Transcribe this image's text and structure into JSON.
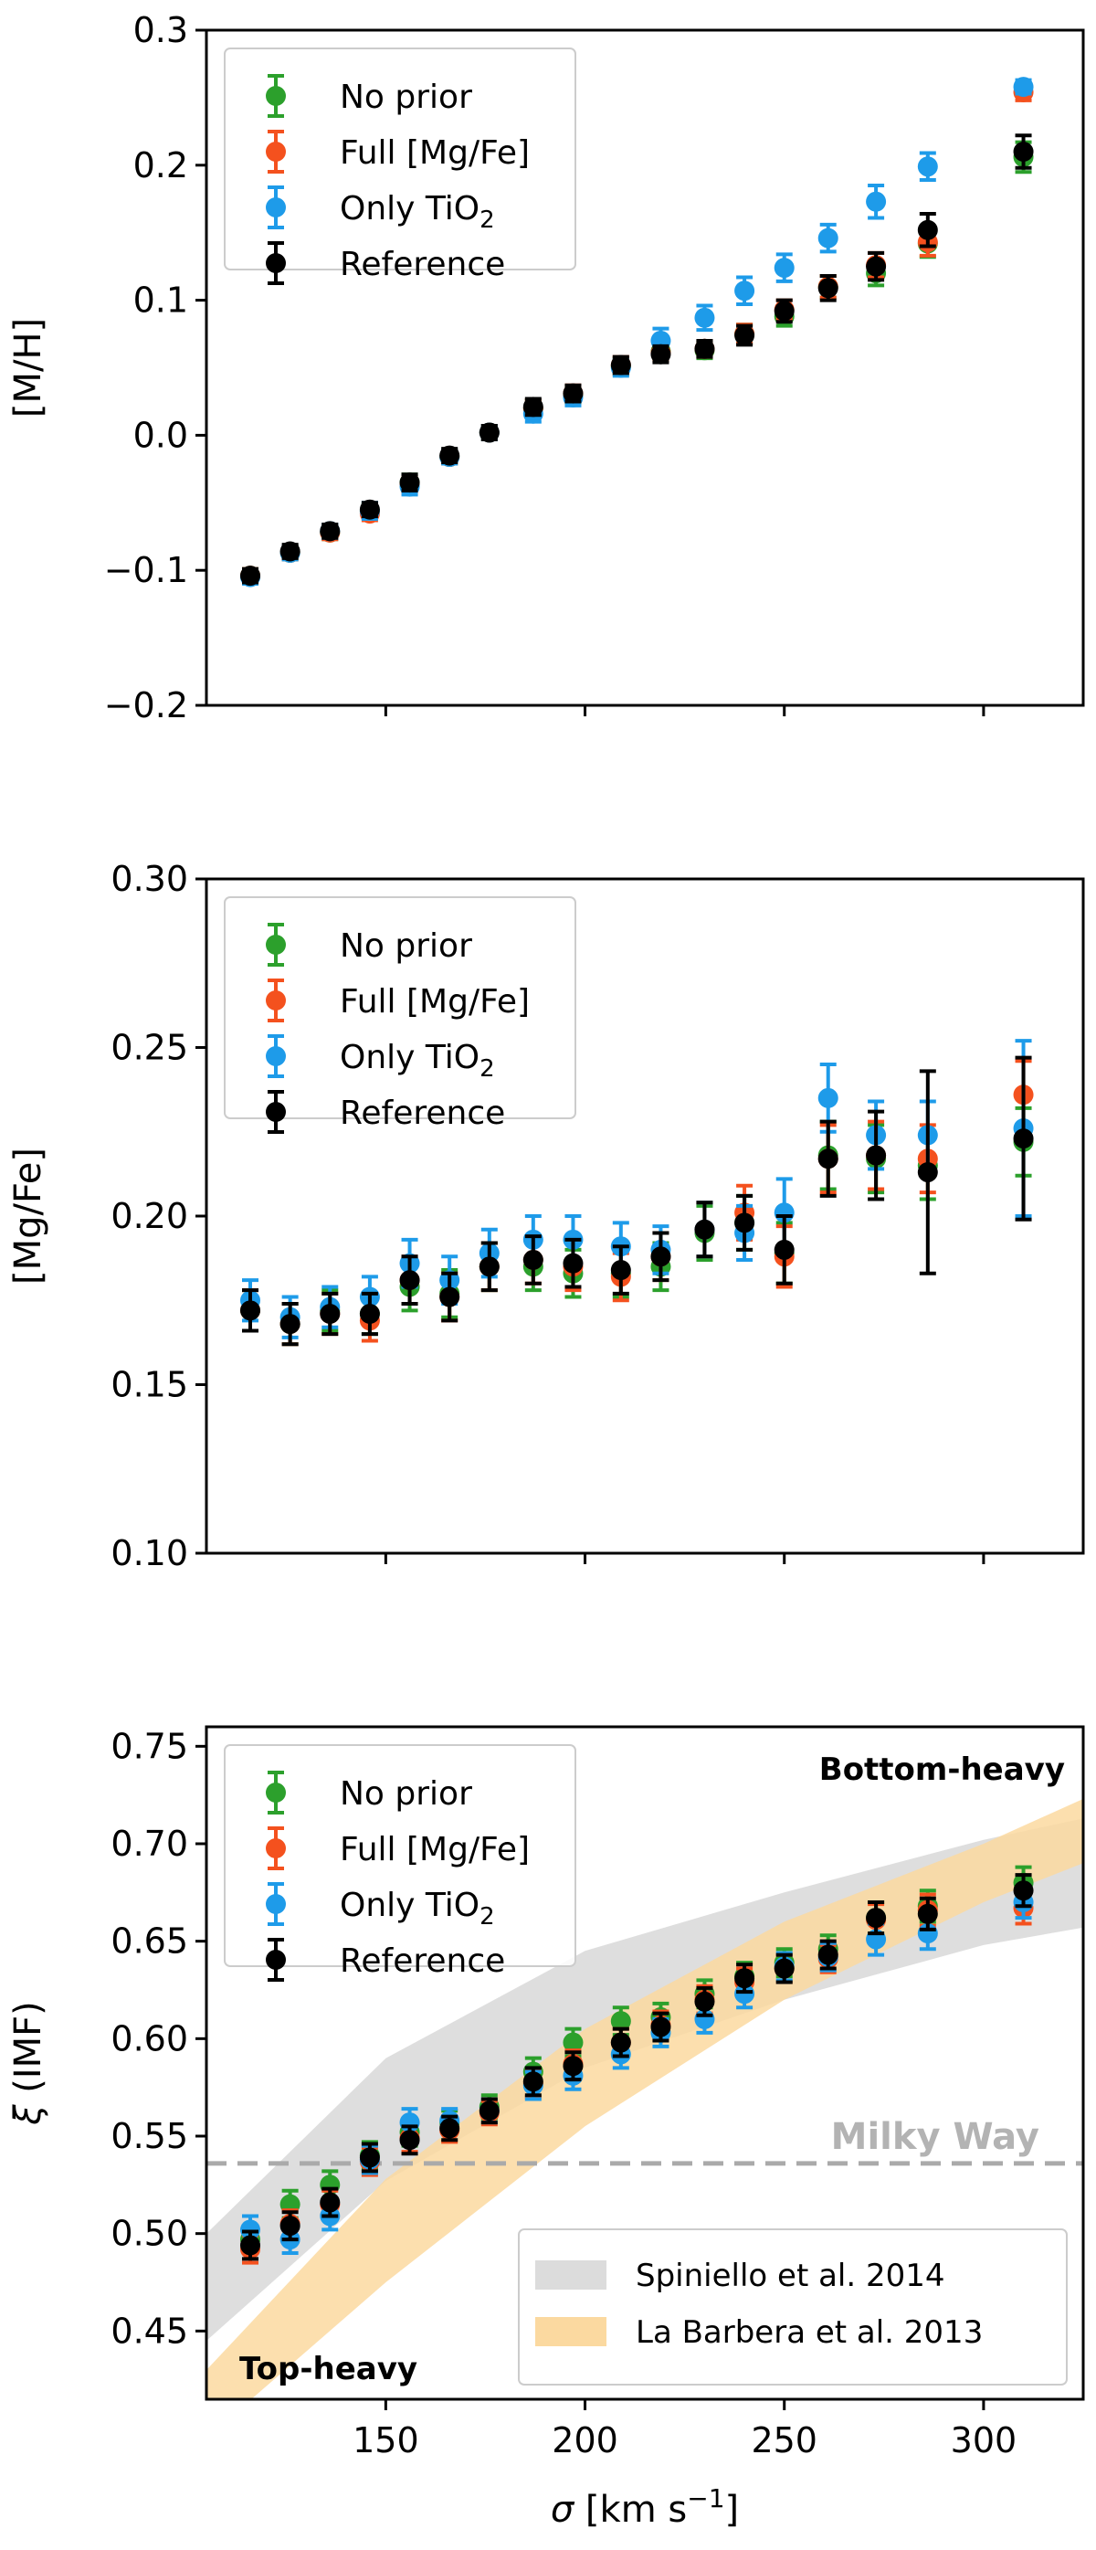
{
  "colors": {
    "no_prior": "#2ca02c",
    "full_mgfe": "#f4511e",
    "only_tio2": "#1e9be9",
    "reference": "#000000",
    "spiniello_band": "#dcdcdc",
    "labarbera_band": "#fbd9a0",
    "milky_way_line": "#aaaaaa"
  },
  "legend_entries": [
    {
      "key": "no_prior",
      "text": "No prior",
      "sub": ""
    },
    {
      "key": "full_mgfe",
      "text": "Full [Mg/Fe]",
      "sub": ""
    },
    {
      "key": "only_tio2",
      "text": "Only TiO",
      "sub": "2"
    },
    {
      "key": "reference",
      "text": "Reference",
      "sub": ""
    }
  ],
  "shared_x": {
    "label_sigma": "σ",
    "label_rest": " [km s",
    "label_exp": "−1",
    "label_close": "]",
    "xlim": [
      105,
      325
    ],
    "ticks": [
      150,
      200,
      250,
      300
    ],
    "tick_labels": [
      "150",
      "200",
      "250",
      "300"
    ]
  },
  "chart_data": [
    {
      "type": "scatter",
      "id": "mh",
      "ylabel": "[M/H]",
      "ylim": [
        -0.2,
        0.3
      ],
      "yticks": [
        -0.2,
        -0.1,
        0.0,
        0.1,
        0.2,
        0.3
      ],
      "ytick_labels": [
        "−0.2",
        "−0.1",
        "0.0",
        "0.1",
        "0.2",
        "0.3"
      ],
      "x": [
        116,
        126,
        136,
        146,
        156,
        166,
        176,
        187,
        197,
        209,
        219,
        230,
        240,
        250,
        261,
        273,
        286,
        310
      ],
      "series": [
        {
          "key": "no_prior",
          "values": [
            -0.104,
            -0.087,
            -0.072,
            -0.056,
            -0.035,
            -0.016,
            0.002,
            0.02,
            0.03,
            0.051,
            0.062,
            0.063,
            0.075,
            0.088,
            0.11,
            0.12,
            0.142,
            0.206
          ],
          "err": [
            0.005,
            0.005,
            0.005,
            0.005,
            0.006,
            0.005,
            0.005,
            0.006,
            0.006,
            0.006,
            0.006,
            0.006,
            0.007,
            0.007,
            0.008,
            0.009,
            0.01,
            0.011
          ]
        },
        {
          "key": "full_mgfe",
          "values": [
            -0.104,
            -0.087,
            -0.072,
            -0.058,
            -0.037,
            -0.016,
            0.002,
            0.02,
            0.031,
            0.052,
            0.061,
            0.064,
            0.075,
            0.093,
            0.11,
            0.126,
            0.143,
            0.254
          ],
          "err": [
            0.005,
            0.005,
            0.005,
            0.005,
            0.006,
            0.005,
            0.005,
            0.006,
            0.006,
            0.006,
            0.006,
            0.006,
            0.007,
            0.007,
            0.008,
            0.009,
            0.01,
            0.006
          ]
        },
        {
          "key": "only_tio2",
          "values": [
            -0.105,
            -0.087,
            -0.071,
            -0.056,
            -0.038,
            -0.016,
            0.002,
            0.016,
            0.028,
            0.05,
            0.07,
            0.087,
            0.107,
            0.124,
            0.146,
            0.173,
            0.199,
            0.258
          ],
          "err": [
            0.005,
            0.005,
            0.005,
            0.006,
            0.006,
            0.005,
            0.005,
            0.006,
            0.006,
            0.006,
            0.009,
            0.009,
            0.01,
            0.01,
            0.01,
            0.012,
            0.01,
            0.005
          ]
        },
        {
          "key": "reference",
          "values": [
            -0.104,
            -0.086,
            -0.071,
            -0.055,
            -0.035,
            -0.015,
            0.002,
            0.021,
            0.031,
            0.052,
            0.06,
            0.064,
            0.074,
            0.092,
            0.109,
            0.125,
            0.152,
            0.21
          ],
          "err": [
            0.005,
            0.005,
            0.005,
            0.005,
            0.006,
            0.005,
            0.005,
            0.006,
            0.006,
            0.006,
            0.006,
            0.006,
            0.007,
            0.008,
            0.009,
            0.01,
            0.012,
            0.012
          ]
        }
      ]
    },
    {
      "type": "scatter",
      "id": "mgfe",
      "ylabel": "[Mg/Fe]",
      "ylim": [
        0.1,
        0.3
      ],
      "yticks": [
        0.1,
        0.15,
        0.2,
        0.25,
        0.3
      ],
      "ytick_labels": [
        "0.10",
        "0.15",
        "0.20",
        "0.25",
        "0.30"
      ],
      "x": [
        116,
        126,
        136,
        146,
        156,
        166,
        176,
        187,
        197,
        209,
        219,
        230,
        240,
        250,
        261,
        273,
        286,
        310
      ],
      "series": [
        {
          "key": "no_prior",
          "values": [
            0.172,
            0.168,
            0.172,
            0.171,
            0.179,
            0.177,
            0.185,
            0.185,
            0.183,
            0.183,
            0.185,
            0.195,
            0.198,
            0.189,
            0.218,
            0.217,
            0.215,
            0.222
          ],
          "err": [
            0.006,
            0.006,
            0.006,
            0.006,
            0.007,
            0.007,
            0.007,
            0.007,
            0.007,
            0.007,
            0.007,
            0.008,
            0.008,
            0.009,
            0.01,
            0.01,
            0.01,
            0.01
          ]
        },
        {
          "key": "full_mgfe",
          "values": [
            0.172,
            0.168,
            0.171,
            0.169,
            0.181,
            0.176,
            0.185,
            0.187,
            0.185,
            0.182,
            0.188,
            0.196,
            0.201,
            0.188,
            0.217,
            0.218,
            0.217,
            0.236
          ],
          "err": [
            0.006,
            0.006,
            0.006,
            0.006,
            0.007,
            0.007,
            0.007,
            0.007,
            0.007,
            0.007,
            0.007,
            0.008,
            0.008,
            0.009,
            0.01,
            0.01,
            0.01,
            0.01
          ]
        },
        {
          "key": "only_tio2",
          "values": [
            0.175,
            0.17,
            0.173,
            0.176,
            0.186,
            0.181,
            0.189,
            0.193,
            0.193,
            0.191,
            0.19,
            0.196,
            0.195,
            0.201,
            0.235,
            0.224,
            0.224,
            0.226
          ],
          "err": [
            0.006,
            0.006,
            0.006,
            0.006,
            0.007,
            0.007,
            0.007,
            0.007,
            0.007,
            0.007,
            0.007,
            0.008,
            0.008,
            0.01,
            0.01,
            0.01,
            0.01,
            0.026
          ]
        },
        {
          "key": "reference",
          "values": [
            0.172,
            0.168,
            0.171,
            0.171,
            0.181,
            0.176,
            0.185,
            0.187,
            0.186,
            0.184,
            0.188,
            0.196,
            0.198,
            0.19,
            0.217,
            0.218,
            0.213,
            0.223
          ],
          "err": [
            0.006,
            0.006,
            0.006,
            0.006,
            0.007,
            0.007,
            0.007,
            0.007,
            0.007,
            0.007,
            0.007,
            0.008,
            0.008,
            0.01,
            0.011,
            0.013,
            0.03,
            0.024
          ]
        }
      ]
    },
    {
      "type": "scatter",
      "id": "imf",
      "ylabel_xi": "ξ",
      "ylabel_rest": " (IMF)",
      "ylim": [
        0.415,
        0.76
      ],
      "yticks": [
        0.45,
        0.5,
        0.55,
        0.6,
        0.65,
        0.7,
        0.75
      ],
      "ytick_labels": [
        "0.45",
        "0.50",
        "0.55",
        "0.60",
        "0.65",
        "0.70",
        "0.75"
      ],
      "annotations": {
        "top": "Bottom-heavy",
        "bottom": "Top-heavy",
        "milky_way": "Milky Way"
      },
      "milky_way_value": 0.536,
      "bands": [
        {
          "key": "spiniello_band",
          "label": "Spiniello et al. 2014",
          "x": [
            105,
            150,
            200,
            250,
            300,
            325
          ],
          "lower": [
            0.445,
            0.527,
            0.585,
            0.62,
            0.648,
            0.657
          ],
          "upper": [
            0.5,
            0.59,
            0.645,
            0.675,
            0.702,
            0.713
          ]
        },
        {
          "key": "labarbera_band",
          "label": "La Barbera et al. 2013",
          "x": [
            105,
            150,
            200,
            250,
            300,
            325
          ],
          "lower": [
            0.395,
            0.475,
            0.555,
            0.62,
            0.67,
            0.69
          ],
          "upper": [
            0.43,
            0.528,
            0.605,
            0.66,
            0.7,
            0.723
          ]
        }
      ],
      "x": [
        116,
        126,
        136,
        146,
        156,
        166,
        176,
        187,
        197,
        209,
        219,
        230,
        240,
        250,
        261,
        273,
        286,
        310
      ],
      "series": [
        {
          "key": "no_prior",
          "values": [
            0.497,
            0.515,
            0.525,
            0.54,
            0.552,
            0.557,
            0.565,
            0.583,
            0.598,
            0.609,
            0.611,
            0.623,
            0.632,
            0.639,
            0.646,
            0.662,
            0.668,
            0.68
          ],
          "err": [
            0.007,
            0.007,
            0.007,
            0.007,
            0.007,
            0.006,
            0.006,
            0.007,
            0.007,
            0.007,
            0.007,
            0.007,
            0.007,
            0.007,
            0.007,
            0.008,
            0.008,
            0.008
          ]
        },
        {
          "key": "full_mgfe",
          "values": [
            0.492,
            0.505,
            0.515,
            0.537,
            0.549,
            0.553,
            0.562,
            0.577,
            0.587,
            0.598,
            0.607,
            0.62,
            0.629,
            0.636,
            0.641,
            0.661,
            0.666,
            0.667
          ],
          "err": [
            0.007,
            0.007,
            0.007,
            0.007,
            0.007,
            0.006,
            0.006,
            0.007,
            0.007,
            0.007,
            0.007,
            0.007,
            0.007,
            0.007,
            0.007,
            0.008,
            0.008,
            0.008
          ]
        },
        {
          "key": "only_tio2",
          "values": [
            0.502,
            0.497,
            0.509,
            0.538,
            0.557,
            0.558,
            0.563,
            0.576,
            0.581,
            0.592,
            0.603,
            0.61,
            0.623,
            0.637,
            0.642,
            0.651,
            0.654,
            0.67
          ],
          "err": [
            0.007,
            0.007,
            0.007,
            0.007,
            0.007,
            0.006,
            0.006,
            0.007,
            0.007,
            0.007,
            0.007,
            0.007,
            0.007,
            0.007,
            0.007,
            0.008,
            0.008,
            0.008
          ]
        },
        {
          "key": "reference",
          "values": [
            0.494,
            0.504,
            0.516,
            0.539,
            0.548,
            0.554,
            0.563,
            0.578,
            0.586,
            0.598,
            0.606,
            0.619,
            0.631,
            0.636,
            0.643,
            0.662,
            0.664,
            0.676
          ],
          "err": [
            0.007,
            0.007,
            0.007,
            0.007,
            0.007,
            0.006,
            0.006,
            0.007,
            0.007,
            0.007,
            0.007,
            0.007,
            0.007,
            0.007,
            0.007,
            0.008,
            0.008,
            0.008
          ]
        }
      ]
    }
  ]
}
